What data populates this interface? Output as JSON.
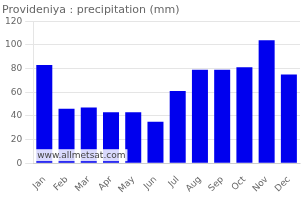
{
  "chart_data": {
    "type": "bar",
    "title": "Provideniya : precipitation (mm)",
    "categories": [
      "Jan",
      "Feb",
      "Mar",
      "Apr",
      "May",
      "Jun",
      "Jul",
      "Aug",
      "Sep",
      "Oct",
      "Nov",
      "Dec"
    ],
    "values": [
      83,
      46,
      47,
      43,
      43,
      35,
      61,
      79,
      79,
      81,
      104,
      75
    ],
    "color": "#0000EE",
    "ylim": [
      0,
      120
    ],
    "yticks": [
      0,
      20,
      40,
      60,
      80,
      100,
      120
    ],
    "grid": true,
    "annotations": [
      "www.allmetsat.com"
    ]
  }
}
